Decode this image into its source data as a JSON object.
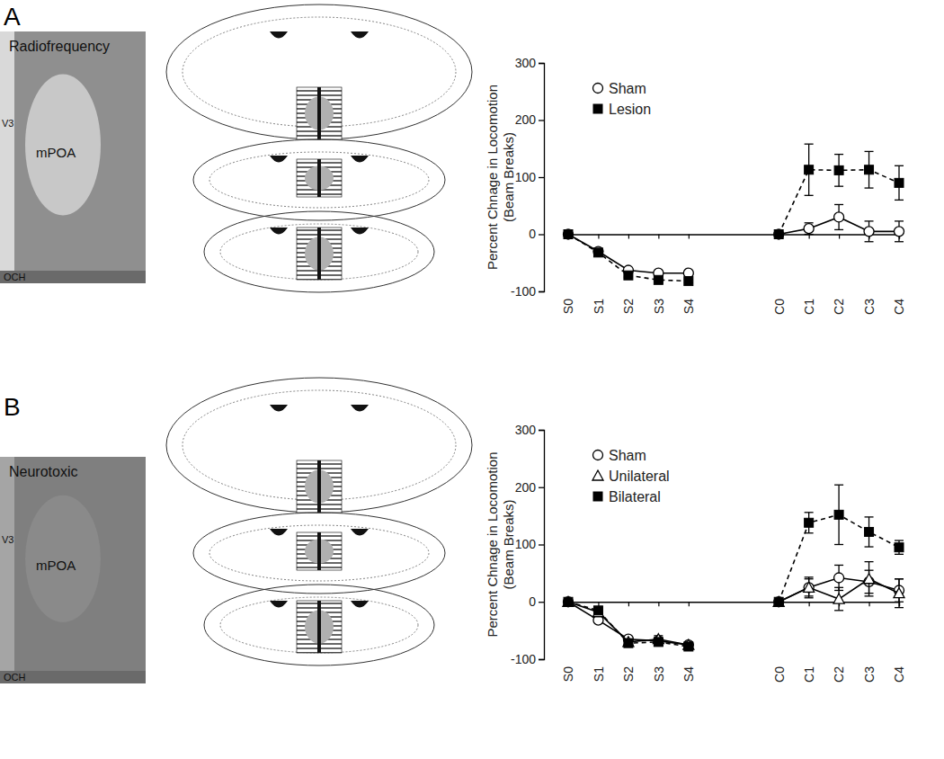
{
  "panels": [
    {
      "label": "A",
      "image_title": "Radiofrequency",
      "image_labels": [
        "V3",
        "mPOA",
        "OCH"
      ]
    },
    {
      "label": "B",
      "image_title": "Neurotoxic",
      "image_labels": [
        "V3",
        "mPOA",
        "OCH"
      ]
    }
  ],
  "chart_data": [
    {
      "type": "line",
      "y_label": [
        "Percent Chnage in Locomotion",
        "(Beam Breaks)"
      ],
      "categories": [
        "S0",
        "S1",
        "S2",
        "S3",
        "S4",
        null,
        null,
        "C0",
        "C1",
        "C2",
        "C3",
        "C4"
      ],
      "ylim": [
        -100,
        300
      ],
      "yticks": [
        -100,
        0,
        100,
        200,
        300
      ],
      "legend": "upper left",
      "series": [
        {
          "name": "Sham",
          "color": "#000000",
          "marker": "circle",
          "line_style": "solid",
          "values": [
            0,
            -30,
            -63,
            -68,
            -68,
            null,
            null,
            0,
            10,
            30,
            5,
            5
          ],
          "errors": [
            0,
            3,
            3,
            3,
            3,
            null,
            null,
            0,
            10,
            22,
            18,
            18
          ]
        },
        {
          "name": "Lesion",
          "color": "#000000",
          "marker": "square",
          "line_style": "dashed",
          "values": [
            0,
            -32,
            -72,
            -80,
            -82,
            null,
            null,
            0,
            113,
            112,
            113,
            90
          ],
          "errors": [
            0,
            3,
            3,
            3,
            3,
            null,
            null,
            0,
            45,
            28,
            32,
            30
          ]
        }
      ]
    },
    {
      "type": "line",
      "y_label": [
        "Percent Chnage in Locomotion",
        "(Beam Breaks)"
      ],
      "categories": [
        "S0",
        "S1",
        "S2",
        "S3",
        "S4",
        null,
        null,
        "C0",
        "C1",
        "C2",
        "C3",
        "C4"
      ],
      "ylim": [
        -100,
        300
      ],
      "yticks": [
        -100,
        0,
        100,
        200,
        300
      ],
      "legend": "upper left",
      "series": [
        {
          "name": "Sham",
          "color": "#000000",
          "marker": "circle",
          "line_style": "solid",
          "values": [
            0,
            -32,
            -65,
            -68,
            -75,
            null,
            null,
            0,
            25,
            42,
            35,
            20
          ],
          "errors": [
            0,
            4,
            4,
            4,
            4,
            null,
            null,
            0,
            15,
            22,
            20,
            20
          ]
        },
        {
          "name": "Unilateral",
          "color": "#000000",
          "marker": "triangle",
          "line_style": "solid",
          "values": [
            0,
            -18,
            -70,
            -65,
            -75,
            null,
            null,
            0,
            25,
            5,
            40,
            15
          ],
          "errors": [
            0,
            6,
            5,
            6,
            5,
            null,
            null,
            0,
            18,
            20,
            30,
            25
          ]
        },
        {
          "name": "Bilateral",
          "color": "#000000",
          "marker": "square",
          "line_style": "dashed",
          "values": [
            0,
            -15,
            -72,
            -70,
            -78,
            null,
            null,
            0,
            138,
            152,
            122,
            95
          ],
          "errors": [
            0,
            6,
            5,
            6,
            5,
            null,
            null,
            0,
            18,
            52,
            26,
            12
          ]
        }
      ]
    }
  ]
}
